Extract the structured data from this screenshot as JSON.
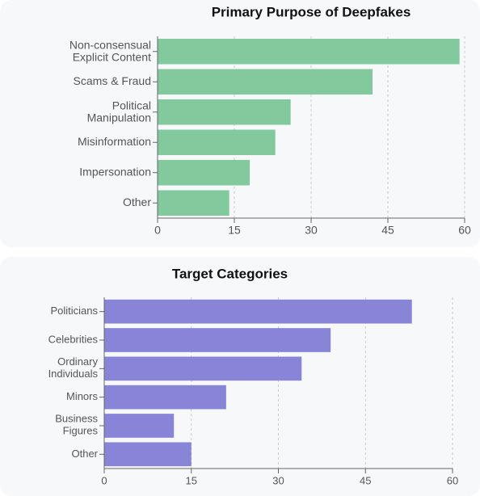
{
  "chart_data": [
    {
      "type": "bar",
      "orientation": "horizontal",
      "title": "Primary Purpose of Deepfakes",
      "categories": [
        "Non-consensual\nExplicit Content",
        "Scams & Fraud",
        "Political\nManipulation",
        "Misinformation",
        "Impersonation",
        "Other"
      ],
      "values": [
        59,
        42,
        26,
        23,
        18,
        14
      ],
      "color": "#82ca9d",
      "xlim": [
        0,
        60
      ],
      "xticks": [
        0,
        15,
        30,
        45,
        60
      ],
      "grid": true
    },
    {
      "type": "bar",
      "orientation": "horizontal",
      "title": "Target Categories",
      "categories": [
        "Politicians",
        "Celebrities",
        "Ordinary\nIndividuals",
        "Minors",
        "Business\nFigures",
        "Other"
      ],
      "values": [
        53,
        39,
        34,
        21,
        12,
        15
      ],
      "color": "#8884d8",
      "xlim": [
        0,
        60
      ],
      "xticks": [
        0,
        15,
        30,
        45,
        60
      ],
      "grid": true
    }
  ]
}
